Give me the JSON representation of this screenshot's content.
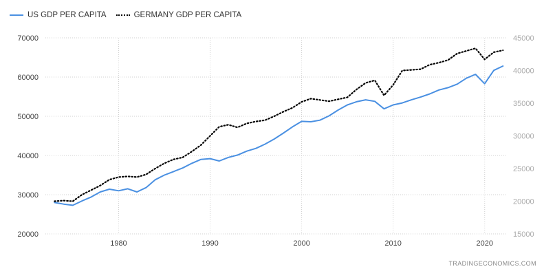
{
  "chart_data": {
    "type": "line",
    "title": "",
    "source": "TRADINGECONOMICS.COM",
    "x_ticks": [
      1980,
      1990,
      2000,
      2010,
      2020
    ],
    "xlim": [
      1972,
      2022.5
    ],
    "y_left": {
      "ylim": [
        20000,
        70000
      ],
      "ticks": [
        20000,
        30000,
        40000,
        50000,
        60000,
        70000
      ]
    },
    "y_right": {
      "ylim": [
        15000,
        45000
      ],
      "ticks": [
        15000,
        20000,
        25000,
        30000,
        35000,
        40000,
        45000
      ]
    },
    "legend": {
      "placement": "top-left"
    },
    "grid": true,
    "series": [
      {
        "name": "US GDP PER CAPITA",
        "axis": "left",
        "color": "#4a90e2",
        "style": "solid",
        "x": [
          1973,
          1974,
          1975,
          1976,
          1977,
          1978,
          1979,
          1980,
          1981,
          1982,
          1983,
          1984,
          1985,
          1986,
          1987,
          1988,
          1989,
          1990,
          1991,
          1992,
          1993,
          1994,
          1995,
          1996,
          1997,
          1998,
          1999,
          2000,
          2001,
          2002,
          2003,
          2004,
          2005,
          2006,
          2007,
          2008,
          2009,
          2010,
          2011,
          2012,
          2013,
          2014,
          2015,
          2016,
          2017,
          2018,
          2019,
          2020,
          2021,
          2022
        ],
        "values": [
          28000,
          27600,
          27300,
          28400,
          29400,
          30700,
          31400,
          31000,
          31500,
          30700,
          31800,
          33800,
          35000,
          35900,
          36800,
          38000,
          39000,
          39200,
          38600,
          39500,
          40100,
          41100,
          41800,
          42900,
          44200,
          45700,
          47300,
          48700,
          48600,
          49000,
          50100,
          51600,
          52900,
          53700,
          54200,
          53800,
          51900,
          52900,
          53400,
          54200,
          54900,
          55700,
          56700,
          57300,
          58200,
          59700,
          60700,
          58300,
          61700,
          62800
        ]
      },
      {
        "name": "GERMANY GDP PER CAPITA",
        "axis": "right",
        "color": "#000000",
        "style": "dotted",
        "x": [
          1973,
          1974,
          1975,
          1976,
          1977,
          1978,
          1979,
          1980,
          1981,
          1982,
          1983,
          1984,
          1985,
          1986,
          1987,
          1988,
          1989,
          1990,
          1991,
          1992,
          1993,
          1994,
          1995,
          1996,
          1997,
          1998,
          1999,
          2000,
          2001,
          2002,
          2003,
          2004,
          2005,
          2006,
          2007,
          2008,
          2009,
          2010,
          2011,
          2012,
          2013,
          2014,
          2015,
          2016,
          2017,
          2018,
          2019,
          2020,
          2021,
          2022
        ],
        "values": [
          20000,
          20100,
          20000,
          21000,
          21700,
          22400,
          23300,
          23700,
          23800,
          23700,
          24100,
          25000,
          25800,
          26400,
          26700,
          27600,
          28600,
          30000,
          31400,
          31700,
          31300,
          31900,
          32200,
          32400,
          33000,
          33700,
          34300,
          35200,
          35700,
          35500,
          35300,
          35600,
          35900,
          37100,
          38100,
          38500,
          36200,
          37800,
          40000,
          40100,
          40200,
          40900,
          41200,
          41600,
          42600,
          43000,
          43400,
          41700,
          42800,
          43100
        ]
      }
    ]
  }
}
